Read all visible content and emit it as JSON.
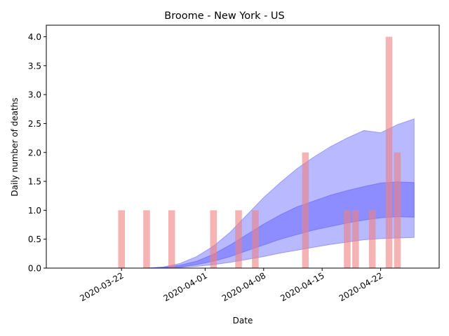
{
  "chart_data": {
    "type": "bar",
    "title": "Broome - New York - US",
    "xlabel": "Date",
    "ylabel": "Daily number of deaths",
    "xlim": [
      "2020-03-13",
      "2020-04-29"
    ],
    "ylim": [
      0,
      4.2
    ],
    "grid": false,
    "x_ticks": [
      "2020-03-22",
      "2020-04-01",
      "2020-04-08",
      "2020-04-15",
      "2020-04-22"
    ],
    "y_ticks": [
      "0.0",
      "0.5",
      "1.0",
      "1.5",
      "2.0",
      "2.5",
      "3.0",
      "3.5",
      "4.0"
    ],
    "colors": {
      "bars": "#f08080",
      "band_outer": "#8080ff",
      "band_inner": "#6a6aff"
    },
    "bars": [
      {
        "date": "2020-03-22",
        "value": 1
      },
      {
        "date": "2020-03-25",
        "value": 1
      },
      {
        "date": "2020-03-28",
        "value": 1
      },
      {
        "date": "2020-04-02",
        "value": 1
      },
      {
        "date": "2020-04-05",
        "value": 1
      },
      {
        "date": "2020-04-07",
        "value": 1
      },
      {
        "date": "2020-04-13",
        "value": 2
      },
      {
        "date": "2020-04-18",
        "value": 1
      },
      {
        "date": "2020-04-19",
        "value": 1
      },
      {
        "date": "2020-04-21",
        "value": 1
      },
      {
        "date": "2020-04-23",
        "value": 4
      },
      {
        "date": "2020-04-24",
        "value": 2
      }
    ],
    "bands": {
      "dates": [
        "2020-03-25",
        "2020-03-27",
        "2020-03-29",
        "2020-03-31",
        "2020-04-02",
        "2020-04-04",
        "2020-04-06",
        "2020-04-08",
        "2020-04-10",
        "2020-04-12",
        "2020-04-14",
        "2020-04-16",
        "2020-04-18",
        "2020-04-20",
        "2020-04-22",
        "2020-04-24",
        "2020-04-26"
      ],
      "outer_upper": [
        0.0,
        0.02,
        0.08,
        0.2,
        0.38,
        0.62,
        0.92,
        1.22,
        1.48,
        1.72,
        1.92,
        2.1,
        2.25,
        2.38,
        2.34,
        2.48,
        2.58
      ],
      "outer_lower": [
        0.0,
        0.0,
        0.01,
        0.03,
        0.06,
        0.1,
        0.15,
        0.2,
        0.26,
        0.31,
        0.36,
        0.41,
        0.45,
        0.49,
        0.51,
        0.52,
        0.53
      ],
      "inner_upper": [
        0.0,
        0.01,
        0.05,
        0.12,
        0.24,
        0.4,
        0.58,
        0.76,
        0.92,
        1.06,
        1.16,
        1.26,
        1.34,
        1.41,
        1.47,
        1.49,
        1.48
      ],
      "inner_lower": [
        0.0,
        0.005,
        0.02,
        0.06,
        0.12,
        0.2,
        0.3,
        0.4,
        0.5,
        0.58,
        0.66,
        0.72,
        0.78,
        0.83,
        0.87,
        0.89,
        0.88
      ]
    }
  }
}
